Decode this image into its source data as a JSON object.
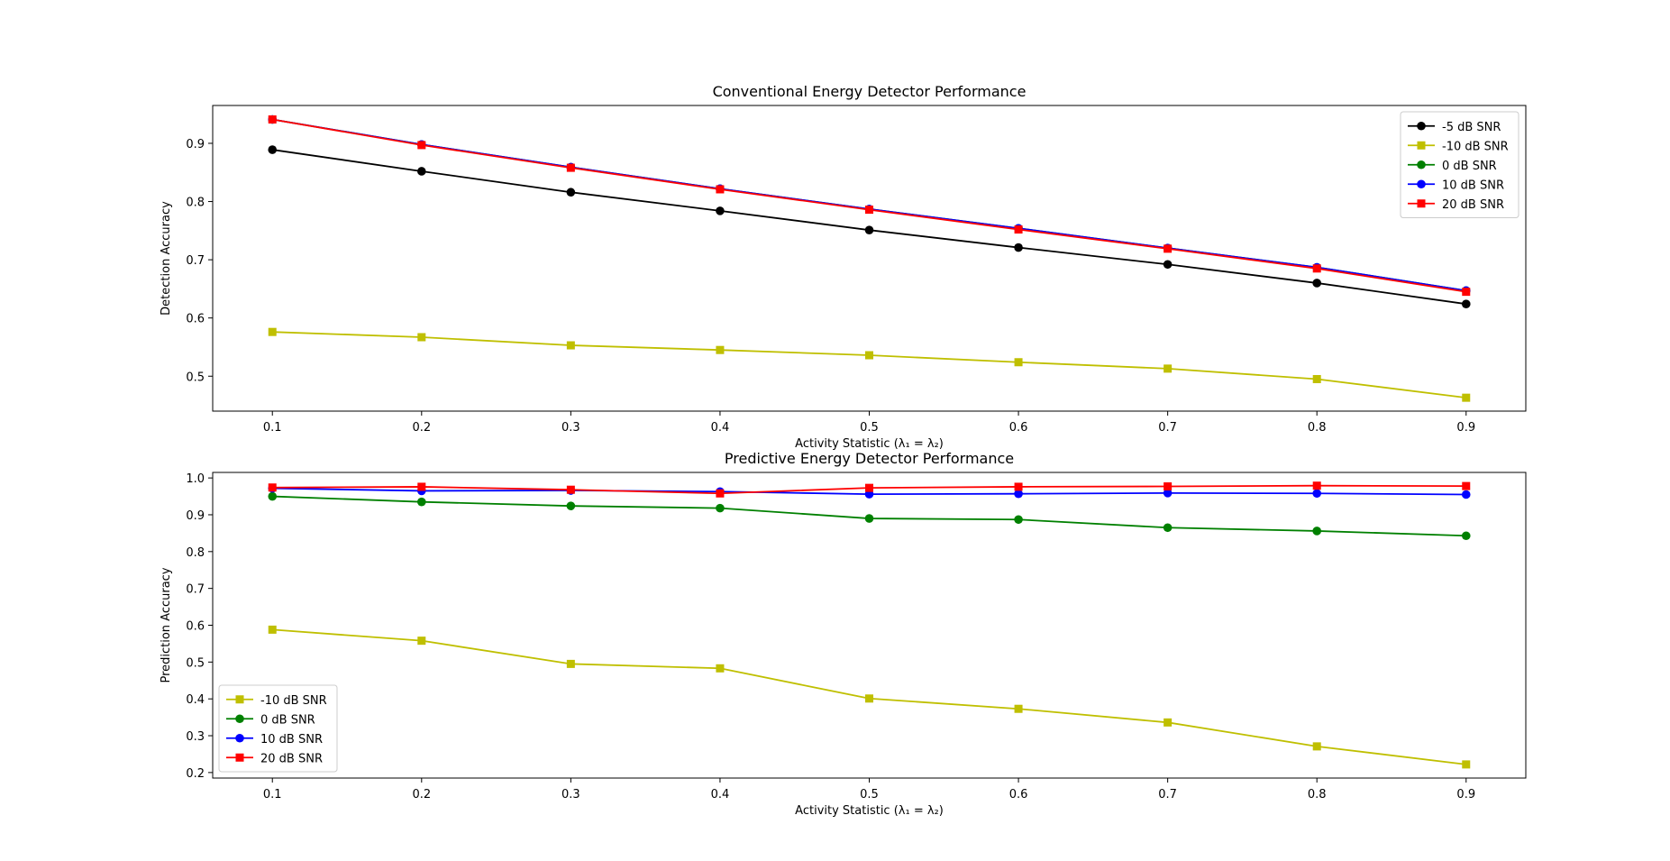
{
  "chart_data": [
    {
      "type": "line",
      "title": "Conventional Energy Detector Performance",
      "xlabel": "Activity Statistic (λ₁ = λ₂)",
      "ylabel": "Detection Accuracy",
      "x": [
        0.1,
        0.2,
        0.3,
        0.4,
        0.5,
        0.6,
        0.7,
        0.8,
        0.9
      ],
      "xlim": [
        0.06,
        0.94
      ],
      "ylim": [
        0.44,
        0.965
      ],
      "xticks": [
        "0.1",
        "0.2",
        "0.3",
        "0.4",
        "0.5",
        "0.6",
        "0.7",
        "0.8",
        "0.9"
      ],
      "yticks": [
        "0.5",
        "0.6",
        "0.7",
        "0.8",
        "0.9"
      ],
      "grid": false,
      "legend_position": "top-right",
      "series": [
        {
          "name": "-5 dB SNR",
          "color": "#000000",
          "marker": "circle",
          "values": [
            0.889,
            0.852,
            0.816,
            0.784,
            0.751,
            0.721,
            0.692,
            0.66,
            0.624
          ]
        },
        {
          "name": "-10 dB SNR",
          "color": "#bfbf00",
          "marker": "square",
          "values": [
            0.576,
            0.567,
            0.553,
            0.545,
            0.536,
            0.524,
            0.513,
            0.495,
            0.463
          ]
        },
        {
          "name": "0 dB SNR",
          "color": "#008000",
          "marker": "circle",
          "values": [
            0.941,
            0.898,
            0.859,
            0.822,
            0.787,
            0.754,
            0.72,
            0.687,
            0.647
          ]
        },
        {
          "name": "10 dB SNR",
          "color": "#0000ff",
          "marker": "circle",
          "values": [
            0.941,
            0.898,
            0.859,
            0.822,
            0.787,
            0.754,
            0.72,
            0.687,
            0.647
          ]
        },
        {
          "name": "20 dB SNR",
          "color": "#ff0000",
          "marker": "square",
          "values": [
            0.941,
            0.897,
            0.858,
            0.821,
            0.786,
            0.752,
            0.719,
            0.685,
            0.645
          ]
        }
      ]
    },
    {
      "type": "line",
      "title": "Predictive Energy Detector Performance",
      "xlabel": "Activity Statistic (λ₁ = λ₂)",
      "ylabel": "Prediction Accuracy",
      "x": [
        0.1,
        0.2,
        0.3,
        0.4,
        0.5,
        0.6,
        0.7,
        0.8,
        0.9
      ],
      "xlim": [
        0.06,
        0.94
      ],
      "ylim": [
        0.185,
        1.015
      ],
      "xticks": [
        "0.1",
        "0.2",
        "0.3",
        "0.4",
        "0.5",
        "0.6",
        "0.7",
        "0.8",
        "0.9"
      ],
      "yticks": [
        "0.2",
        "0.3",
        "0.4",
        "0.5",
        "0.6",
        "0.7",
        "0.8",
        "0.9",
        "1.0"
      ],
      "grid": false,
      "legend_position": "bottom-left",
      "series": [
        {
          "name": "-10 dB SNR",
          "color": "#bfbf00",
          "marker": "square",
          "values": [
            0.588,
            0.558,
            0.495,
            0.483,
            0.401,
            0.373,
            0.336,
            0.271,
            0.222
          ]
        },
        {
          "name": "0 dB SNR",
          "color": "#008000",
          "marker": "circle",
          "values": [
            0.95,
            0.935,
            0.924,
            0.918,
            0.89,
            0.887,
            0.865,
            0.856,
            0.843
          ]
        },
        {
          "name": "10 dB SNR",
          "color": "#0000ff",
          "marker": "circle",
          "values": [
            0.972,
            0.965,
            0.966,
            0.963,
            0.956,
            0.957,
            0.959,
            0.958,
            0.955
          ]
        },
        {
          "name": "20 dB SNR",
          "color": "#ff0000",
          "marker": "square",
          "values": [
            0.974,
            0.976,
            0.968,
            0.958,
            0.973,
            0.976,
            0.977,
            0.979,
            0.978
          ]
        }
      ]
    }
  ]
}
